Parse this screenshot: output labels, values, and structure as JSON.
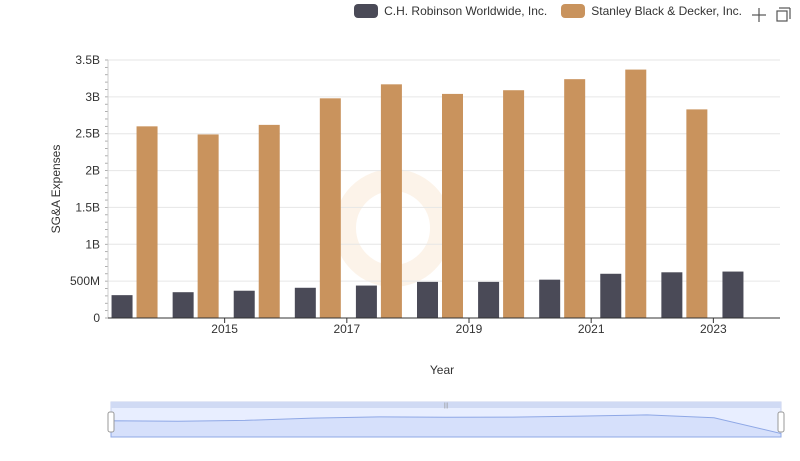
{
  "chart_data": {
    "type": "bar",
    "xlabel": "Year",
    "ylabel": "SG&A Expenses",
    "ylim": [
      0,
      3500000000
    ],
    "yticks": [
      0,
      500000000,
      1000000000,
      1500000000,
      2000000000,
      2500000000,
      3000000000,
      3500000000
    ],
    "ytick_labels": [
      "0",
      "500M",
      "1B",
      "1.5B",
      "2B",
      "2.5B",
      "3B",
      "3.5B"
    ],
    "categories": [
      "2014",
      "2015",
      "2016",
      "2017",
      "2018",
      "2019",
      "2020",
      "2021",
      "2022",
      "2023",
      "2024"
    ],
    "xtick_labels": [
      "2015",
      "2017",
      "2019",
      "2021",
      "2023"
    ],
    "grid": true,
    "legend_position": "top-right",
    "series": [
      {
        "name": "C.H. Robinson Worldwide, Inc.",
        "color": "#4a4a57",
        "values": [
          310000000,
          350000000,
          370000000,
          410000000,
          440000000,
          490000000,
          490000000,
          520000000,
          600000000,
          620000000,
          630000000
        ]
      },
      {
        "name": "Stanley Black & Decker, Inc.",
        "color": "#c9935d",
        "values": [
          2600000000,
          2490000000,
          2620000000,
          2980000000,
          3170000000,
          3040000000,
          3090000000,
          3240000000,
          3370000000,
          2830000000,
          null
        ]
      }
    ]
  },
  "toolbar": {
    "icons": [
      "crosshair-icon",
      "expand-icon"
    ]
  }
}
